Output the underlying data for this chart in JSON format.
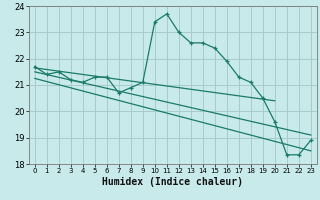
{
  "xlabel": "Humidex (Indice chaleur)",
  "bg_color": "#c8eaea",
  "grid_color": "#a8cccc",
  "line_color": "#1a7a6a",
  "xlim": [
    -0.5,
    23.5
  ],
  "ylim": [
    18,
    24
  ],
  "yticks": [
    18,
    19,
    20,
    21,
    22,
    23,
    24
  ],
  "xticks": [
    0,
    1,
    2,
    3,
    4,
    5,
    6,
    7,
    8,
    9,
    10,
    11,
    12,
    13,
    14,
    15,
    16,
    17,
    18,
    19,
    20,
    21,
    22,
    23
  ],
  "line1_x": [
    0,
    1,
    2,
    3,
    4,
    5,
    6,
    7,
    8,
    9,
    10,
    11,
    12,
    13,
    14,
    15,
    16,
    17,
    18,
    19,
    20,
    21,
    22,
    23
  ],
  "line1_y": [
    21.7,
    21.4,
    21.5,
    21.2,
    21.1,
    21.3,
    21.3,
    20.7,
    20.9,
    21.1,
    23.4,
    23.7,
    23.0,
    22.6,
    22.6,
    22.4,
    21.9,
    21.3,
    21.1,
    20.5,
    19.6,
    18.35,
    18.35,
    18.9
  ],
  "trend1_x": [
    0,
    20
  ],
  "trend1_y": [
    21.65,
    20.4
  ],
  "trend2_x": [
    0,
    23
  ],
  "trend2_y": [
    21.5,
    19.1
  ],
  "trend3_x": [
    0,
    23
  ],
  "trend3_y": [
    21.25,
    18.5
  ]
}
